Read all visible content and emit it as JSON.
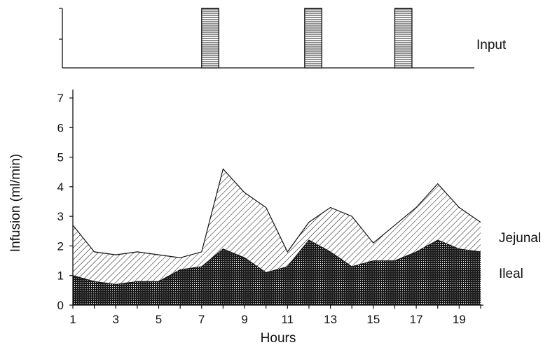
{
  "chart_data": [
    {
      "type": "bar",
      "title": "",
      "label": "Input",
      "xlim": [
        1,
        20
      ],
      "bars": [
        {
          "start": 7,
          "end": 7.8
        },
        {
          "start": 11.8,
          "end": 12.6
        },
        {
          "start": 16,
          "end": 16.8
        }
      ]
    },
    {
      "type": "area",
      "title": "",
      "xlabel": "Hours",
      "ylabel": "Infusion (ml/min)",
      "xlim": [
        1,
        20
      ],
      "ylim": [
        0,
        7
      ],
      "xticks": [
        "1",
        "3",
        "5",
        "7",
        "9",
        "11",
        "13",
        "15",
        "17",
        "19"
      ],
      "yticks": [
        "0",
        "1",
        "2",
        "3",
        "4",
        "5",
        "6",
        "7"
      ],
      "x": [
        1,
        2,
        3,
        4,
        5,
        6,
        7,
        8,
        9,
        10,
        11,
        12,
        13,
        14,
        15,
        16,
        17,
        18,
        19,
        20
      ],
      "series": [
        {
          "name": "Ileal",
          "values": [
            1.0,
            0.8,
            0.7,
            0.8,
            0.8,
            1.2,
            1.3,
            1.9,
            1.6,
            1.1,
            1.3,
            2.2,
            1.8,
            1.3,
            1.5,
            1.5,
            1.8,
            2.2,
            1.9,
            1.8
          ]
        },
        {
          "name": "Jejunal",
          "values": [
            2.7,
            1.8,
            1.7,
            1.8,
            1.7,
            1.6,
            1.8,
            4.6,
            3.8,
            3.3,
            1.8,
            2.8,
            3.3,
            3.0,
            2.1,
            2.7,
            3.3,
            4.1,
            3.3,
            2.8
          ]
        }
      ]
    }
  ]
}
